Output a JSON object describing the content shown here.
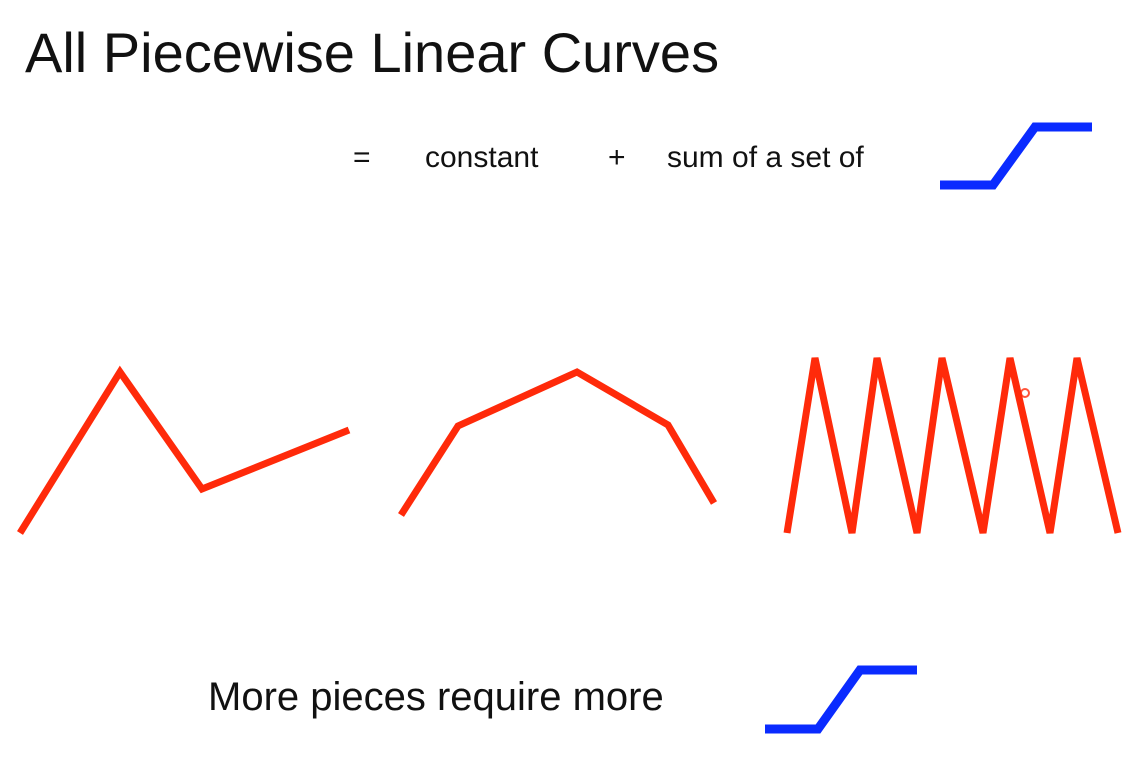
{
  "title": "All Piecewise Linear Curves",
  "equation": {
    "equals": "=",
    "constant": "constant",
    "plus": "+",
    "sum": "sum of a set of"
  },
  "footer": "More pieces require more"
}
